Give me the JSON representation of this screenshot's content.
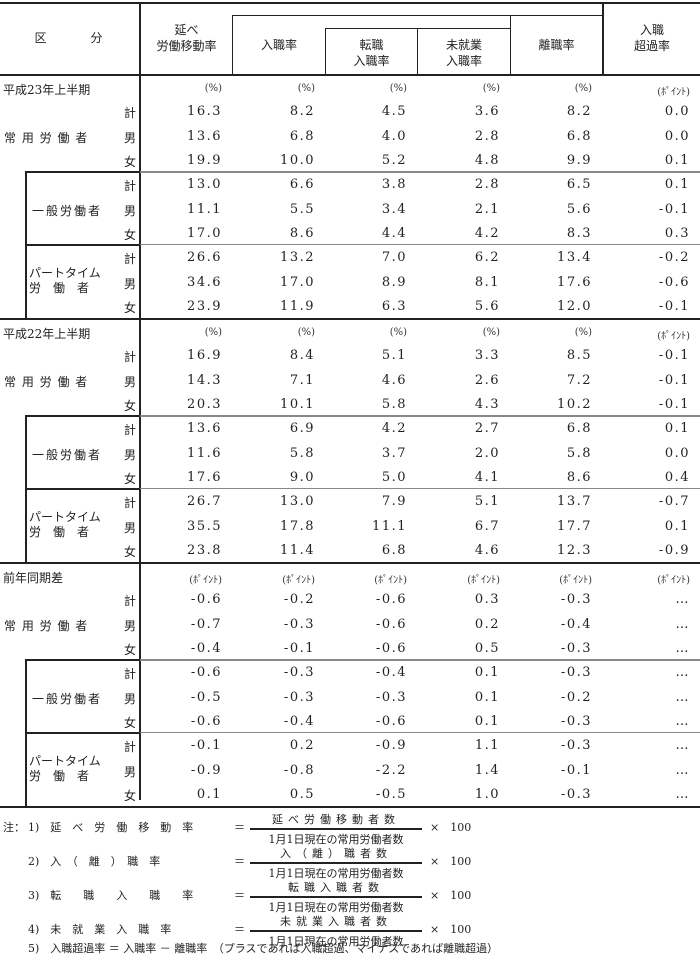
{
  "header": {
    "category": "区　　　分",
    "columns": [
      "延べ\n労働移動率",
      "入職率",
      "転職\n入職率",
      "未就業\n入職率",
      "離職率",
      "入職\n超過率"
    ]
  },
  "sections": [
    {
      "title": "平成23年上半期",
      "units": [
        "(%)",
        "(%)",
        "(%)",
        "(%)",
        "(%)",
        "(ﾎﾟｲﾝﾄ)"
      ],
      "groups": [
        {
          "label": "常 用 労 働 者",
          "rows": [
            {
              "sex": "計",
              "values": [
                "16.3",
                "8.2",
                "4.5",
                "3.6",
                "8.2",
                "0.0"
              ]
            },
            {
              "sex": "男",
              "values": [
                "13.6",
                "6.8",
                "4.0",
                "2.8",
                "6.8",
                "0.0"
              ]
            },
            {
              "sex": "女",
              "values": [
                "19.9",
                "10.0",
                "5.2",
                "4.8",
                "9.9",
                "0.1"
              ]
            }
          ]
        },
        {
          "label": "一般労働者",
          "rows": [
            {
              "sex": "計",
              "values": [
                "13.0",
                "6.6",
                "3.8",
                "2.8",
                "6.5",
                "0.1"
              ]
            },
            {
              "sex": "男",
              "values": [
                "11.1",
                "5.5",
                "3.4",
                "2.1",
                "5.6",
                "-0.1"
              ]
            },
            {
              "sex": "女",
              "values": [
                "17.0",
                "8.6",
                "4.4",
                "4.2",
                "8.3",
                "0.3"
              ]
            }
          ]
        },
        {
          "label": "パートタイム\n労　働　者",
          "rows": [
            {
              "sex": "計",
              "values": [
                "26.6",
                "13.2",
                "7.0",
                "6.2",
                "13.4",
                "-0.2"
              ]
            },
            {
              "sex": "男",
              "values": [
                "34.6",
                "17.0",
                "8.9",
                "8.1",
                "17.6",
                "-0.6"
              ]
            },
            {
              "sex": "女",
              "values": [
                "23.9",
                "11.9",
                "6.3",
                "5.6",
                "12.0",
                "-0.1"
              ]
            }
          ]
        }
      ]
    },
    {
      "title": "平成22年上半期",
      "units": [
        "(%)",
        "(%)",
        "(%)",
        "(%)",
        "(%)",
        "(ﾎﾟｲﾝﾄ)"
      ],
      "groups": [
        {
          "label": "常 用 労 働 者",
          "rows": [
            {
              "sex": "計",
              "values": [
                "16.9",
                "8.4",
                "5.1",
                "3.3",
                "8.5",
                "-0.1"
              ]
            },
            {
              "sex": "男",
              "values": [
                "14.3",
                "7.1",
                "4.6",
                "2.6",
                "7.2",
                "-0.1"
              ]
            },
            {
              "sex": "女",
              "values": [
                "20.3",
                "10.1",
                "5.8",
                "4.3",
                "10.2",
                "-0.1"
              ]
            }
          ]
        },
        {
          "label": "一般労働者",
          "rows": [
            {
              "sex": "計",
              "values": [
                "13.6",
                "6.9",
                "4.2",
                "2.7",
                "6.8",
                "0.1"
              ]
            },
            {
              "sex": "男",
              "values": [
                "11.6",
                "5.8",
                "3.7",
                "2.0",
                "5.8",
                "0.0"
              ]
            },
            {
              "sex": "女",
              "values": [
                "17.6",
                "9.0",
                "5.0",
                "4.1",
                "8.6",
                "0.4"
              ]
            }
          ]
        },
        {
          "label": "パートタイム\n労　働　者",
          "rows": [
            {
              "sex": "計",
              "values": [
                "26.7",
                "13.0",
                "7.9",
                "5.1",
                "13.7",
                "-0.7"
              ]
            },
            {
              "sex": "男",
              "values": [
                "35.5",
                "17.8",
                "11.1",
                "6.7",
                "17.7",
                "0.1"
              ]
            },
            {
              "sex": "女",
              "values": [
                "23.8",
                "11.4",
                "6.8",
                "4.6",
                "12.3",
                "-0.9"
              ]
            }
          ]
        }
      ]
    },
    {
      "title": "前年同期差",
      "units": [
        "(ﾎﾟｲﾝﾄ)",
        "(ﾎﾟｲﾝﾄ)",
        "(ﾎﾟｲﾝﾄ)",
        "(ﾎﾟｲﾝﾄ)",
        "(ﾎﾟｲﾝﾄ)",
        "(ﾎﾟｲﾝﾄ)"
      ],
      "groups": [
        {
          "label": "常 用 労 働 者",
          "rows": [
            {
              "sex": "計",
              "values": [
                "-0.6",
                "-0.2",
                "-0.6",
                "0.3",
                "-0.3",
                "…"
              ]
            },
            {
              "sex": "男",
              "values": [
                "-0.7",
                "-0.3",
                "-0.6",
                "0.2",
                "-0.4",
                "…"
              ]
            },
            {
              "sex": "女",
              "values": [
                "-0.4",
                "-0.1",
                "-0.6",
                "0.5",
                "-0.3",
                "…"
              ]
            }
          ]
        },
        {
          "label": "一般労働者",
          "rows": [
            {
              "sex": "計",
              "values": [
                "-0.6",
                "-0.3",
                "-0.4",
                "0.1",
                "-0.3",
                "…"
              ]
            },
            {
              "sex": "男",
              "values": [
                "-0.5",
                "-0.3",
                "-0.3",
                "0.1",
                "-0.2",
                "…"
              ]
            },
            {
              "sex": "女",
              "values": [
                "-0.6",
                "-0.4",
                "-0.6",
                "0.1",
                "-0.3",
                "…"
              ]
            }
          ]
        },
        {
          "label": "パートタイム\n労　働　者",
          "rows": [
            {
              "sex": "計",
              "values": [
                "-0.1",
                "0.2",
                "-0.9",
                "1.1",
                "-0.3",
                "…"
              ]
            },
            {
              "sex": "男",
              "values": [
                "-0.9",
                "-0.8",
                "-2.2",
                "1.4",
                "-0.1",
                "…"
              ]
            },
            {
              "sex": "女",
              "values": [
                "0.1",
                "0.5",
                "-0.5",
                "1.0",
                "-0.3",
                "…"
              ]
            }
          ]
        }
      ]
    }
  ],
  "notes": {
    "prefix": "注：",
    "items": [
      {
        "label": "1)　延　べ　労　働　移　動　率",
        "eq": "＝",
        "numerator": "延べ労働移動者数",
        "denominator": "1月1日現在の常用労働者数",
        "times": "×　100"
      },
      {
        "label": "2)　入　（　離　）　職　率",
        "eq": "＝",
        "numerator": "入（離）職者数",
        "denominator": "1月1日現在の常用労働者数",
        "times": "×　100"
      },
      {
        "label": "3)　転　　職　　入　　職　　率",
        "eq": "＝",
        "numerator": "転職入職者数",
        "denominator": "1月1日現在の常用労働者数",
        "times": "×　100"
      },
      {
        "label": "4)　未　就　業　入　職　率",
        "eq": "＝",
        "numerator": "未就業入職者数",
        "denominator": "1月1日現在の常用労働者数",
        "times": "×　100"
      }
    ],
    "note5": "5)　入職超過率 ＝ 入職率 － 離職率　（プラスであれば入職超過、マイナスであれば離職超過）"
  }
}
